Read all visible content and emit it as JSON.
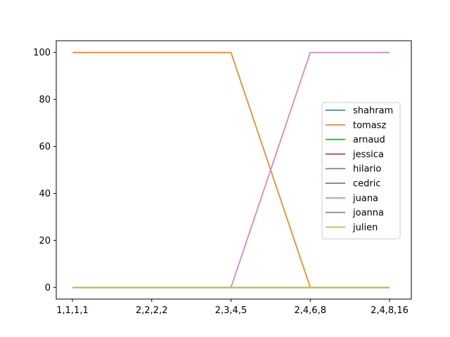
{
  "chart_data": {
    "type": "line",
    "title": "",
    "xlabel": "",
    "ylabel": "",
    "categories": [
      "1,1,1,1",
      "2,2,2,2",
      "2,3,4,5",
      "2,4,6,8",
      "2,4,8,16"
    ],
    "ylim": [
      -5,
      105
    ],
    "yticks": [
      0,
      20,
      40,
      60,
      80,
      100
    ],
    "grid": false,
    "legend_position": "center-right",
    "series": [
      {
        "name": "shahram",
        "color": "#1f77b4",
        "values": [
          0,
          0,
          0,
          0,
          0
        ]
      },
      {
        "name": "tomasz",
        "color": "#ff7f0e",
        "values": [
          100,
          100,
          100,
          0,
          0
        ]
      },
      {
        "name": "arnaud",
        "color": "#2ca02c",
        "values": [
          0,
          0,
          0,
          0,
          0
        ]
      },
      {
        "name": "jessica",
        "color": "#d62728",
        "values": [
          0,
          0,
          0,
          0,
          0
        ]
      },
      {
        "name": "hilario",
        "color": "#9467bd",
        "values": [
          0,
          0,
          0,
          0,
          0
        ]
      },
      {
        "name": "cedric",
        "color": "#8c564b",
        "values": [
          0,
          0,
          0,
          0,
          0
        ]
      },
      {
        "name": "juana",
        "color": "#e377c2",
        "values": [
          0,
          0,
          0,
          100,
          100
        ]
      },
      {
        "name": "joanna",
        "color": "#7f7f7f",
        "values": [
          0,
          0,
          0,
          0,
          0
        ]
      },
      {
        "name": "julien",
        "color": "#bcbd22",
        "values": [
          0,
          0,
          0,
          0,
          0
        ]
      }
    ]
  }
}
